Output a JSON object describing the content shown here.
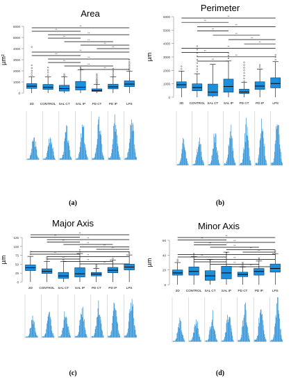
{
  "chart_data": [
    {
      "type": "box",
      "label": "(a)",
      "title": "Area",
      "ylabel": "µm²",
      "ylim": [
        0,
        6000
      ],
      "yticks": [
        0,
        1000,
        2000,
        3000,
        4000,
        5000,
        6000
      ],
      "categories": [
        "2D",
        "CONTROL",
        "SAL CT",
        "SAL IP",
        "PD CT",
        "PD IP",
        "LPS"
      ],
      "boxes": [
        {
          "min": 0,
          "q1": 420,
          "median": 620,
          "q3": 850,
          "max": 1450,
          "outliers": [
            1600,
            1800,
            2000,
            2250,
            2500,
            4150
          ]
        },
        {
          "min": 0,
          "q1": 330,
          "median": 520,
          "q3": 780,
          "max": 1450,
          "outliers": [
            1600,
            1850,
            2050,
            2300
          ]
        },
        {
          "min": 0,
          "q1": 180,
          "median": 400,
          "q3": 700,
          "max": 1450,
          "outliers": [
            1550,
            1700
          ]
        },
        {
          "min": 0,
          "q1": 280,
          "median": 530,
          "q3": 1050,
          "max": 2100,
          "outliers": [
            2200,
            2300
          ]
        },
        {
          "min": 0,
          "q1": 150,
          "median": 230,
          "q3": 380,
          "max": 780,
          "outliers": [
            850,
            950,
            1050,
            1150,
            1250,
            1400,
            1550,
            1700
          ]
        },
        {
          "min": 0,
          "q1": 380,
          "median": 560,
          "q3": 800,
          "max": 1450,
          "outliers": [
            1550,
            1700,
            1850,
            2000,
            2200
          ]
        },
        {
          "min": 0,
          "q1": 580,
          "median": 810,
          "q3": 1100,
          "max": 1950,
          "outliers": [
            2050,
            2200,
            2350,
            2500,
            2650,
            2800,
            3000
          ]
        }
      ],
      "significance_bars": 13,
      "significance_label": "**"
    },
    {
      "type": "box",
      "label": "(b)",
      "title": "Perimeter",
      "ylabel": "µm",
      "ylim": [
        0,
        6000
      ],
      "yticks": [
        0,
        1000,
        2000,
        3000,
        4000,
        5000,
        6000
      ],
      "categories": [
        "2D",
        "CONTROL",
        "SAL CT",
        "SAL IP",
        "PD CT",
        "PD IP",
        "LPS"
      ],
      "boxes": [
        {
          "min": 0,
          "q1": 700,
          "median": 930,
          "q3": 1150,
          "max": 1950,
          "outliers": [
            2100,
            2300
          ]
        },
        {
          "min": 0,
          "q1": 480,
          "median": 720,
          "q3": 1000,
          "max": 1750,
          "outliers": [
            1900,
            2100,
            2300,
            2550,
            2800,
            3050,
            3300,
            3550,
            3800
          ]
        },
        {
          "min": 0,
          "q1": 100,
          "median": 380,
          "q3": 980,
          "max": 2450,
          "outliers": []
        },
        {
          "min": 0,
          "q1": 380,
          "median": 800,
          "q3": 1350,
          "max": 2700,
          "outliers": [
            2900,
            3100,
            3300
          ]
        },
        {
          "min": 0,
          "q1": 280,
          "median": 390,
          "q3": 600,
          "max": 1100,
          "outliers": [
            1200,
            1400,
            1600,
            1800,
            2000,
            2200,
            2400,
            2600
          ]
        },
        {
          "min": 0,
          "q1": 580,
          "median": 830,
          "q3": 1150,
          "max": 2100,
          "outliers": [
            2250,
            2400
          ]
        },
        {
          "min": 0,
          "q1": 700,
          "median": 1020,
          "q3": 1450,
          "max": 2650,
          "outliers": [
            2800,
            3000,
            3150
          ]
        }
      ],
      "significance_bars": 11,
      "significance_label": "**"
    },
    {
      "type": "box",
      "label": "(c)",
      "title": "Major Axis",
      "ylabel": "µm",
      "ylim": [
        0,
        125
      ],
      "yticks": [
        0,
        25,
        50,
        75,
        100,
        125
      ],
      "categories": [
        "2D",
        "CONTROL",
        "SAL CT",
        "SAL IP",
        "PD CT",
        "PD IP",
        "LPS"
      ],
      "boxes": [
        {
          "min": 0,
          "q1": 32,
          "median": 40,
          "q3": 48,
          "max": 72,
          "outliers": [
            78,
            85
          ]
        },
        {
          "min": 0,
          "q1": 24,
          "median": 30,
          "q3": 37,
          "max": 58,
          "outliers": [
            62,
            66,
            70
          ]
        },
        {
          "min": 0,
          "q1": 10,
          "median": 17,
          "q3": 27,
          "max": 58,
          "outliers": [
            62
          ]
        },
        {
          "min": 0,
          "q1": 14,
          "median": 23,
          "q3": 40,
          "max": 80,
          "outliers": [
            85
          ]
        },
        {
          "min": 0,
          "q1": 17,
          "median": 22,
          "q3": 27,
          "max": 38,
          "outliers": [
            40,
            43,
            46,
            49
          ]
        },
        {
          "min": 0,
          "q1": 26,
          "median": 33,
          "q3": 41,
          "max": 62,
          "outliers": [
            66
          ]
        },
        {
          "min": 0,
          "q1": 34,
          "median": 42,
          "q3": 50,
          "max": 76,
          "outliers": [
            80,
            84
          ]
        }
      ],
      "significance_bars": 13,
      "significance_label": "**"
    },
    {
      "type": "box",
      "label": "(d)",
      "title": "Minor Axis",
      "ylabel": "µm",
      "ylim": [
        0,
        60
      ],
      "yticks": [
        0,
        20,
        40,
        60
      ],
      "categories": [
        "2D",
        "CONTROL",
        "SAL CT",
        "SAL IP",
        "PD CT",
        "PD IP",
        "LPS"
      ],
      "boxes": [
        {
          "min": 0,
          "q1": 13,
          "median": 16,
          "q3": 20,
          "max": 30,
          "outliers": [
            32,
            34
          ]
        },
        {
          "min": 0,
          "q1": 13,
          "median": 18,
          "q3": 24,
          "max": 38,
          "outliers": [
            40,
            42
          ]
        },
        {
          "min": 0,
          "q1": 6,
          "median": 12,
          "q3": 19,
          "max": 34,
          "outliers": []
        },
        {
          "min": 0,
          "q1": 8,
          "median": 16,
          "q3": 25,
          "max": 44,
          "outliers": []
        },
        {
          "min": 0,
          "q1": 11,
          "median": 14,
          "q3": 17,
          "max": 24,
          "outliers": [
            26,
            28,
            30
          ]
        },
        {
          "min": 0,
          "q1": 13,
          "median": 18,
          "q3": 22,
          "max": 32,
          "outliers": [
            34,
            36
          ]
        },
        {
          "min": 0,
          "q1": 17,
          "median": 22,
          "q3": 28,
          "max": 42,
          "outliers": [
            44,
            46
          ]
        }
      ],
      "significance_bars": 13,
      "significance_label": "**"
    }
  ],
  "colors": {
    "box_fill": "#1a8fdd",
    "box_stroke": "#0b3a66",
    "histogram": "#2b8fd6",
    "axis": "#888888",
    "significance": "#000000"
  }
}
